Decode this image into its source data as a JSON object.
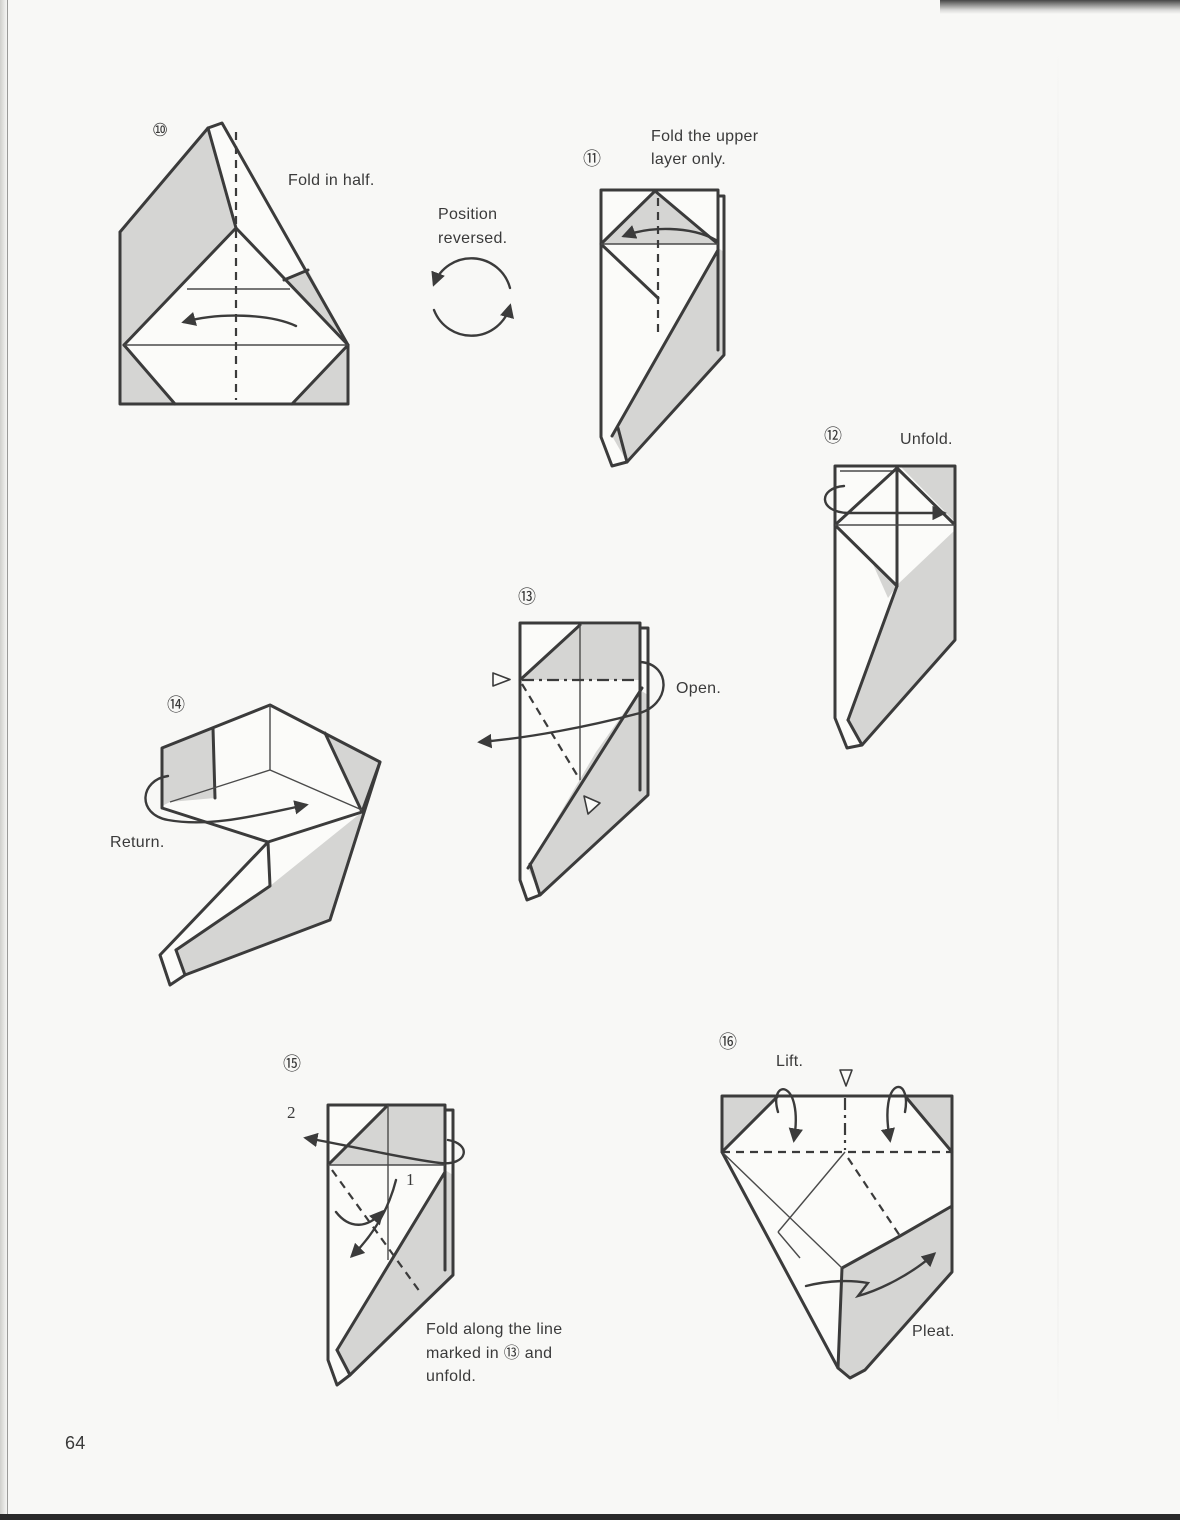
{
  "steps": {
    "step_10": {
      "number": "⑩",
      "instruction": "Fold in half."
    },
    "transition": {
      "lines": [
        "Position",
        "reversed."
      ]
    },
    "step_11": {
      "number": "⑪",
      "instruction_lines": [
        "Fold the upper",
        "layer only."
      ]
    },
    "step_12": {
      "number": "⑫",
      "instruction": "Unfold."
    },
    "step_13": {
      "number": "⑬",
      "instruction": "Open."
    },
    "step_14": {
      "number": "⑭",
      "instruction": "Return."
    },
    "step_15": {
      "number": "⑮",
      "order_labels": {
        "first": "1",
        "second": "2"
      },
      "instruction_lines": [
        "Fold along the line",
        "marked in ⑬ and",
        "unfold."
      ]
    },
    "step_16": {
      "number": "⑯",
      "lift_label": "Lift.",
      "pleat_label": "Pleat."
    }
  },
  "page_number": "64",
  "colors": {
    "paper": "#f8f8f6",
    "ink": "#3a3a3a",
    "shade": "#d5d5d3"
  }
}
